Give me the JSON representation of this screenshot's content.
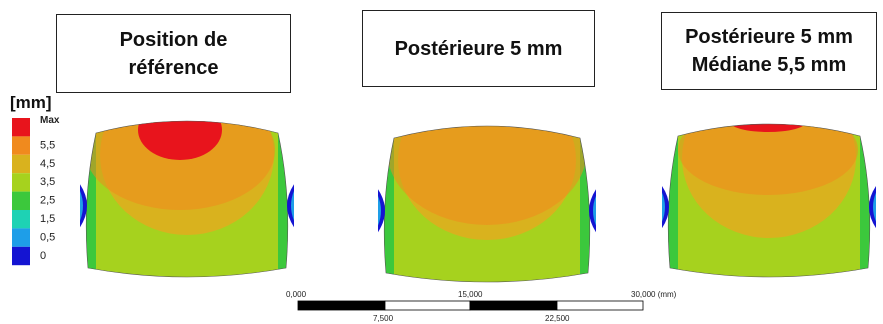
{
  "panels": [
    {
      "title": [
        "Position de",
        "référence"
      ]
    },
    {
      "title": [
        "Postérieure 5 mm"
      ]
    },
    {
      "title": [
        "Postérieure 5 mm",
        "Médiane 5,5 mm"
      ]
    }
  ],
  "legend": {
    "unit": "[mm]",
    "labels": [
      "Max",
      "5,5",
      "4,5",
      "3,5",
      "2,5",
      "1,5",
      "0,5",
      "0"
    ],
    "colors": [
      "#e8141c",
      "#f08a1e",
      "#d9b21e",
      "#a6d21e",
      "#3cc83c",
      "#1ed2b4",
      "#1e9ee8",
      "#1414d2"
    ]
  },
  "scale_bar": {
    "top_labels": [
      "0,000",
      "15,000",
      "30,000 (mm)"
    ],
    "bottom_labels": [
      "7,500",
      "22,500"
    ]
  }
}
